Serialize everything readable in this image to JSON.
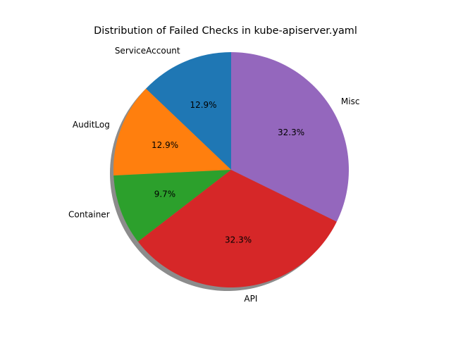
{
  "chart_data": {
    "type": "pie",
    "title": "Distribution of Failed Checks in kube-apiserver.yaml",
    "start_angle_deg": 90,
    "counterclock": true,
    "shadow": true,
    "slices": [
      {
        "label": "ServiceAccount",
        "value": 12.9,
        "pct_label": "12.9%",
        "color": "#1f77b4"
      },
      {
        "label": "AuditLog",
        "value": 12.9,
        "pct_label": "12.9%",
        "color": "#ff7f0e"
      },
      {
        "label": "Container",
        "value": 9.7,
        "pct_label": "9.7%",
        "color": "#2ca02c"
      },
      {
        "label": "API",
        "value": 32.3,
        "pct_label": "32.3%",
        "color": "#d62728"
      },
      {
        "label": "Misc",
        "value": 32.3,
        "pct_label": "32.3%",
        "color": "#9467bd"
      }
    ]
  }
}
